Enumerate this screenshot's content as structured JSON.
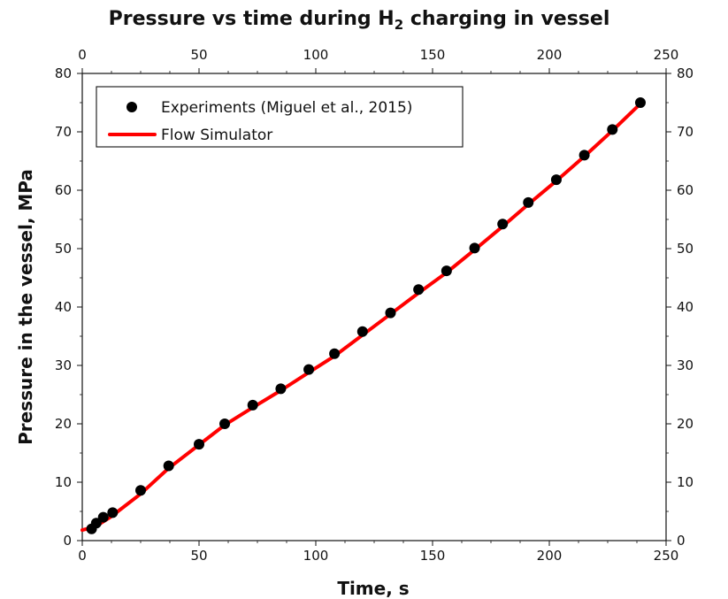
{
  "chart_data": {
    "type": "scatter",
    "title_prefix": "Pressure vs time during H",
    "title_sub": "2",
    "title_suffix": " charging in vessel",
    "xlabel": "Time, s",
    "ylabel": "Pressure in the vessel, MPa",
    "xlim": [
      0,
      250
    ],
    "ylim": [
      0,
      80
    ],
    "xticks": [
      0,
      50,
      100,
      150,
      200,
      250
    ],
    "yticks": [
      0,
      10,
      20,
      30,
      40,
      50,
      60,
      70,
      80
    ],
    "xtick_labels": [
      "0",
      "50",
      "100",
      "150",
      "200",
      "250"
    ],
    "ytick_labels": [
      "0",
      "10",
      "20",
      "30",
      "40",
      "50",
      "60",
      "70",
      "80"
    ],
    "legend_position": "top-left",
    "grid": false,
    "series": [
      {
        "name": "Experiments (Miguel et al., 2015)",
        "style": "markers",
        "color": "#000000",
        "x": [
          4,
          6,
          9,
          13,
          25,
          37,
          50,
          61,
          73,
          85,
          97,
          108,
          120,
          132,
          144,
          156,
          168,
          180,
          191,
          203,
          215,
          227,
          239
        ],
        "y": [
          2.0,
          3.0,
          4.0,
          4.8,
          8.6,
          12.8,
          16.5,
          20.0,
          23.2,
          26.0,
          29.3,
          32.0,
          35.8,
          39.0,
          43.0,
          46.2,
          50.1,
          54.2,
          57.9,
          61.8,
          66.0,
          70.4,
          75.0
        ]
      },
      {
        "name": "Flow Simulator",
        "style": "line",
        "color": "#ff0000",
        "x": [
          0,
          4,
          8,
          12,
          25,
          37,
          50,
          61,
          73,
          85,
          97,
          108,
          120,
          132,
          144,
          156,
          168,
          180,
          191,
          203,
          215,
          227,
          240
        ],
        "y": [
          1.8,
          2.2,
          3.0,
          4.0,
          8.0,
          12.4,
          16.4,
          19.8,
          22.8,
          25.7,
          28.8,
          31.6,
          35.2,
          38.8,
          42.4,
          45.9,
          49.8,
          53.8,
          57.6,
          61.6,
          65.8,
          70.2,
          75.2
        ]
      }
    ]
  }
}
